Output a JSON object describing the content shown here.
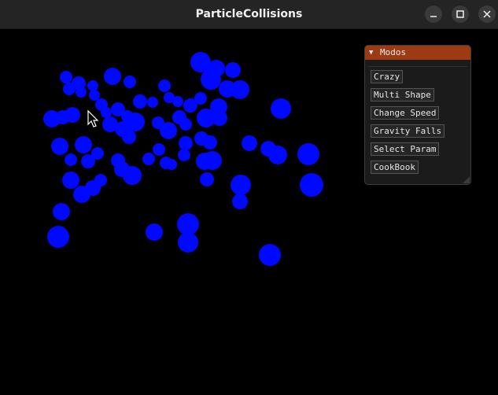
{
  "window": {
    "title": "ParticleCollisions"
  },
  "titlebar_controls": [
    "minimize-icon",
    "maximize-icon",
    "close-icon"
  ],
  "colors": {
    "particle": "#0008ff",
    "panel_header": "#9c3a14",
    "background": "#000000"
  },
  "panel": {
    "title": "Modos",
    "buttons": [
      {
        "label": "Crazy"
      },
      {
        "label": "Multi Shape"
      },
      {
        "label": "Change Speed"
      },
      {
        "label": "Gravity Falls"
      },
      {
        "label": "Select Param"
      },
      {
        "label": "CookBook"
      }
    ]
  }
}
